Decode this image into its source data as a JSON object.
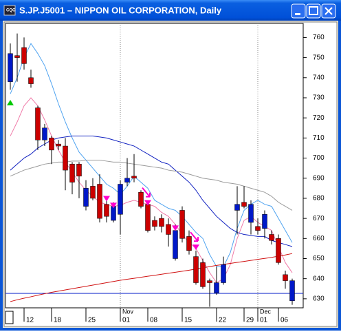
{
  "window_title": "S.JP.J5001 – NIPPON OIL CORPORATION, Daily",
  "chart_data": {
    "type": "candlestick",
    "categories": [
      null,
      null,
      "12",
      null,
      null,
      null,
      "18",
      null,
      null,
      null,
      null,
      "25",
      null,
      null,
      null,
      null,
      "01",
      null,
      null,
      null,
      "08",
      null,
      null,
      null,
      null,
      "15",
      null,
      null,
      null,
      null,
      "22",
      null,
      null,
      null,
      "29",
      null,
      "01",
      null,
      null,
      "06",
      null,
      null
    ],
    "month_labels": [
      {
        "category": 16,
        "label": "Nov"
      },
      {
        "category": 36,
        "label": "Dec"
      }
    ],
    "month_gridlines": true,
    "up_color": "#cc0000",
    "down_color": "#0018c8",
    "open": [
      752,
      750,
      747,
      737,
      709,
      715,
      704,
      706,
      694,
      688,
      691,
      685,
      680,
      670,
      671,
      676,
      687,
      690,
      690,
      676,
      664,
      666,
      666,
      662,
      664,
      660,
      654,
      638,
      636,
      638,
      638,
      647,
      null,
      677,
      676,
      677,
      664,
      672,
      659,
      648,
      639,
      639
    ],
    "high": [
      757,
      762,
      760,
      744,
      726,
      717,
      711,
      709,
      710,
      698,
      698,
      689,
      690,
      692,
      681,
      678,
      689,
      700,
      702,
      684,
      679,
      671,
      672,
      670,
      667,
      676,
      664,
      654,
      650,
      640,
      646,
      651,
      null,
      686,
      686,
      679,
      670,
      674,
      664,
      662,
      644,
      640
    ],
    "low": [
      734,
      738,
      744,
      735,
      704,
      706,
      697,
      704,
      684,
      682,
      680,
      674,
      679,
      668,
      668,
      668,
      662,
      686,
      688,
      675,
      663,
      664,
      663,
      656,
      649,
      658,
      652,
      637,
      635,
      626,
      632,
      637,
      null,
      662,
      675,
      662,
      662,
      660,
      657,
      647,
      635,
      627
    ],
    "close": [
      738,
      751,
      755,
      740,
      725,
      709,
      710,
      707,
      706,
      697,
      697,
      676,
      686,
      687,
      677,
      669,
      672,
      688,
      691,
      683,
      677,
      669,
      670,
      667,
      650,
      674,
      661,
      651,
      648,
      639,
      633,
      638,
      null,
      674,
      678,
      668,
      666,
      665,
      662,
      660,
      642,
      629
    ],
    "lines": [
      {
        "color": "#4fa3f0",
        "values": [
          732,
          740,
          750,
          757,
          752,
          746,
          737,
          727,
          718,
          710,
          703,
          699,
          695,
          691,
          687,
          685,
          682,
          686,
          691,
          688,
          685,
          679,
          677,
          675,
          674,
          671,
          667,
          663,
          660,
          652,
          646,
          646,
          653,
          665,
          674,
          677,
          679,
          677,
          676,
          670,
          664,
          658
        ]
      },
      {
        "color": "#f07aa8",
        "values": [
          711,
          718,
          726,
          730,
          726,
          719,
          711,
          704,
          698,
          693,
          688,
          684,
          681,
          678,
          677,
          676,
          676.5,
          678,
          679,
          678,
          677,
          676,
          673,
          671,
          667,
          662,
          658,
          655,
          649,
          643,
          638,
          640,
          647,
          660,
          669,
          671,
          668,
          666,
          664,
          656,
          648,
          643
        ]
      },
      {
        "color": "#1020c0",
        "values": [
          694,
          697,
          700,
          702,
          705,
          707,
          709,
          710,
          710.5,
          711,
          711,
          711,
          711,
          710.5,
          710,
          709,
          708,
          707,
          706,
          704,
          702,
          700,
          698,
          697,
          694,
          691,
          688,
          684,
          679,
          675,
          671,
          668,
          665,
          663,
          662,
          661.5,
          661,
          661,
          659,
          658,
          657,
          656
        ]
      },
      {
        "color": "#9a9a9a",
        "values": [
          691,
          692.5,
          694,
          695,
          696,
          697,
          697.5,
          698,
          698,
          698.5,
          698.5,
          699,
          699,
          699,
          698.5,
          698,
          698,
          697.5,
          697,
          696.5,
          696,
          695.5,
          695,
          694,
          693.5,
          693,
          692,
          691,
          690,
          689.5,
          689,
          688,
          687.5,
          687,
          686,
          685,
          684,
          683,
          681,
          678,
          676,
          674
        ]
      },
      {
        "color": "#d01010",
        "values": [
          628.6,
          629.5,
          630.3,
          631,
          631.8,
          632.5,
          633.2,
          633.8,
          634.4,
          635,
          635.6,
          636.2,
          636.8,
          637.4,
          638,
          638.6,
          639.2,
          639.7,
          640.2,
          640.7,
          641.2,
          641.7,
          642.2,
          642.7,
          643.2,
          643.7,
          644.2,
          644.8,
          645.4,
          646,
          646.6,
          647.1,
          647.6,
          648.1,
          648.6,
          649.1,
          649.6,
          650.1,
          650.6,
          651.2,
          651.8,
          652.5
        ]
      }
    ],
    "hline": {
      "value": 632.7,
      "color": "#0018c8"
    },
    "markers": [
      {
        "category": 0,
        "value": 727.6,
        "shape": "up",
        "color": "#00c800"
      },
      {
        "category": 14,
        "value": 679.8,
        "shape": "down",
        "color": "#ff00cc"
      },
      {
        "category": 15,
        "value": 676.4,
        "shape": "down",
        "color": "#ff00cc"
      },
      {
        "category": 20,
        "value": 677.7,
        "shape": "down",
        "color": "#ff00cc",
        "arrow": true
      },
      {
        "category": 24,
        "value": 665.1,
        "shape": "down",
        "color": "#ff00cc"
      },
      {
        "category": 27,
        "value": 655.6,
        "shape": "down",
        "color": "#ff00cc",
        "arrow": true
      }
    ],
    "ylim": [
      625.5,
      767
    ],
    "yticks": [
      630,
      640,
      650,
      660,
      670,
      680,
      690,
      700,
      710,
      720,
      730,
      740,
      750,
      760
    ]
  }
}
